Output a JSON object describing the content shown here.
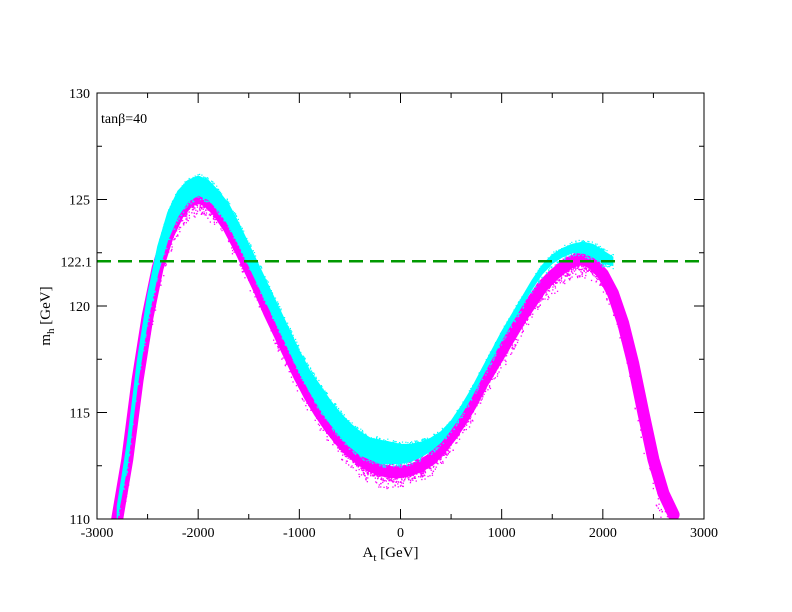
{
  "chart_data": {
    "type": "scatter",
    "title": "",
    "xlabel": "A",
    "xlabel_sub": "t",
    "xlabel_unit": " [GeV]",
    "ylabel": "m",
    "ylabel_sub": "h",
    "ylabel_unit": " [GeV]",
    "xlim": [
      -3000,
      3000
    ],
    "ylim": [
      110,
      130
    ],
    "x_ticks": [
      -3000,
      -2000,
      -1000,
      0,
      1000,
      2000,
      3000
    ],
    "x_tick_labels": [
      "-3000",
      "-2000",
      "-1000",
      "0",
      "1000",
      "2000",
      "3000"
    ],
    "y_ticks": [
      110,
      115,
      120,
      125,
      130
    ],
    "y_tick_labels": [
      "110",
      "115",
      "120",
      "125",
      "130"
    ],
    "annotation": "tanβ=40",
    "reference_line": {
      "y": 122.1,
      "label": "122.1",
      "color": "#009900",
      "style": "dashed"
    },
    "series": [
      {
        "name": "magenta points",
        "color": "#ff00ff",
        "description": "mh vs At scatter band (lower/wider band)",
        "curve_x": [
          -2800,
          -2700,
          -2600,
          -2500,
          -2400,
          -2300,
          -2200,
          -2100,
          -2000,
          -1900,
          -1800,
          -1700,
          -1600,
          -1500,
          -1400,
          -1300,
          -1200,
          -1100,
          -1000,
          -900,
          -800,
          -700,
          -600,
          -500,
          -400,
          -300,
          -200,
          -100,
          0,
          100,
          200,
          300,
          400,
          500,
          600,
          700,
          800,
          900,
          1000,
          1100,
          1200,
          1300,
          1400,
          1500,
          1600,
          1700,
          1800,
          1900,
          2000,
          2100,
          2200,
          2300,
          2400,
          2500,
          2600,
          2700
        ],
        "curve_y": [
          110.0,
          112.8,
          116.5,
          119.5,
          121.8,
          123.3,
          124.3,
          124.9,
          125.1,
          124.9,
          124.4,
          123.7,
          122.8,
          121.8,
          120.8,
          119.7,
          118.7,
          117.7,
          116.7,
          115.8,
          115.0,
          114.3,
          113.7,
          113.2,
          112.8,
          112.5,
          112.3,
          112.2,
          112.2,
          112.3,
          112.5,
          112.8,
          113.3,
          113.9,
          114.6,
          115.4,
          116.3,
          117.1,
          117.9,
          118.7,
          119.5,
          120.2,
          120.9,
          121.4,
          121.8,
          122.1,
          122.2,
          122.0,
          121.5,
          120.6,
          119.2,
          117.3,
          115.0,
          112.8,
          111.2,
          110.2
        ],
        "lower_spread": [
          1.5,
          1.5,
          1.5,
          1.5,
          1.4,
          1.2,
          1.0,
          0.9,
          0.9,
          0.9,
          0.9,
          1.0,
          1.0,
          1.0,
          1.0,
          1.0,
          1.0,
          1.0,
          1.0,
          0.9,
          0.9,
          0.9,
          0.9,
          0.9,
          0.9,
          0.9,
          0.9,
          0.9,
          0.9,
          0.9,
          0.9,
          0.9,
          0.9,
          0.9,
          0.9,
          0.9,
          0.9,
          0.9,
          0.9,
          0.9,
          0.9,
          0.9,
          0.9,
          0.9,
          0.9,
          0.9,
          0.9,
          0.9,
          1.0,
          1.2,
          1.5,
          1.8,
          2.0,
          2.0,
          1.8,
          1.5
        ],
        "upper_spread": [
          0.4,
          0.4,
          0.4,
          0.4,
          0.4,
          0.4,
          0.4,
          0.4,
          0.4,
          0.4,
          0.4,
          0.4,
          0.4,
          0.4,
          0.4,
          0.4,
          0.4,
          0.4,
          0.4,
          0.4,
          0.4,
          0.4,
          0.4,
          0.4,
          0.4,
          0.4,
          0.4,
          0.4,
          0.4,
          0.4,
          0.4,
          0.4,
          0.4,
          0.4,
          0.4,
          0.4,
          0.4,
          0.4,
          0.4,
          0.4,
          0.4,
          0.4,
          0.4,
          0.4,
          0.4,
          0.4,
          0.4,
          0.4,
          0.4,
          0.4,
          0.4,
          0.4,
          0.4,
          0.4,
          0.4,
          0.4
        ]
      },
      {
        "name": "cyan points",
        "color": "#00ffff",
        "description": "mh vs At scatter band (upper/narrow band)",
        "curve_x": [
          -2800,
          -2700,
          -2600,
          -2500,
          -2400,
          -2300,
          -2200,
          -2100,
          -2000,
          -1900,
          -1800,
          -1700,
          -1600,
          -1500,
          -1400,
          -1300,
          -1200,
          -1100,
          -1000,
          -900,
          -800,
          -700,
          -600,
          -500,
          -400,
          -300,
          -200,
          -100,
          0,
          100,
          200,
          300,
          400,
          500,
          600,
          700,
          800,
          900,
          1000,
          1100,
          1200,
          1300,
          1400,
          1500,
          1600,
          1700,
          1800,
          1900,
          2000,
          2100
        ],
        "curve_lo": [
          110.0,
          112.5,
          116.3,
          119.3,
          121.5,
          123.1,
          124.2,
          124.9,
          125.2,
          125.0,
          124.5,
          123.8,
          122.9,
          121.9,
          120.9,
          119.9,
          118.9,
          117.9,
          116.9,
          116.0,
          115.2,
          114.5,
          113.9,
          113.4,
          113.0,
          112.8,
          112.6,
          112.6,
          112.6,
          112.7,
          112.9,
          113.2,
          113.6,
          114.2,
          114.9,
          115.7,
          116.6,
          117.5,
          118.4,
          119.2,
          120.0,
          120.8,
          121.5,
          122.0,
          122.3,
          122.5,
          122.5,
          122.3,
          122.0,
          121.9
        ],
        "curve_hi": [
          110.6,
          113.6,
          117.5,
          120.5,
          122.8,
          124.4,
          125.4,
          125.9,
          126.1,
          125.9,
          125.4,
          124.8,
          123.9,
          122.9,
          121.9,
          120.9,
          119.9,
          118.9,
          117.9,
          117.0,
          116.3,
          115.6,
          115.0,
          114.5,
          114.1,
          113.8,
          113.7,
          113.6,
          113.5,
          113.5,
          113.6,
          113.8,
          114.1,
          114.6,
          115.3,
          116.1,
          117.0,
          117.9,
          118.8,
          119.6,
          120.4,
          121.2,
          121.9,
          122.4,
          122.7,
          122.9,
          123.0,
          122.9,
          122.6,
          122.3
        ]
      }
    ]
  }
}
